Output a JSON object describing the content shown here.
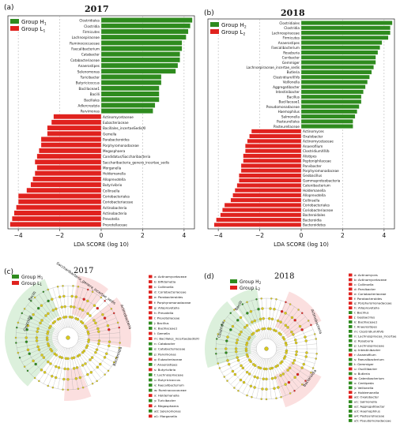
{
  "panels": {
    "a": {
      "letter": "(a)",
      "year": "2017"
    },
    "b": {
      "letter": "(b)",
      "year": "2018"
    },
    "c": {
      "letter": "(c)",
      "year": "2017"
    },
    "d": {
      "letter": "(d)",
      "year": "2018"
    }
  },
  "colors": {
    "green": "#2e8b1e",
    "red": "#e0221e",
    "green_light": "#bfe3bf",
    "red_light": "#f7c4c4",
    "node": "#d9c91c"
  },
  "chart_data": [
    {
      "type": "bar",
      "orientation": "horizontal",
      "title": "2017",
      "xlabel": "LDA SCORE (log 10)",
      "xlim": [
        -4.5,
        4.5
      ],
      "xticks": [
        -4,
        -2,
        0,
        2,
        4
      ],
      "legend": [
        {
          "name": "Group H",
          "sub": "1",
          "color": "#2e8b1e"
        },
        {
          "name": "Group L",
          "sub": "1",
          "color": "#e0221e"
        }
      ],
      "legend_position": "top-left",
      "categories": [
        "Clostridiales",
        "Clostridia",
        "Firmicutes",
        "Lachnospiraceae",
        "Ruminococcaceae",
        "Faecalibacterium",
        "Catabacter",
        "Catabacteriaceae",
        "Anaerostipes",
        "Selenomonas",
        "Turicibacter",
        "Butyricicoccus",
        "Bacillaceae1",
        "Bacilli",
        "Bacillales",
        "Adlercreutzia",
        "Parvimonas",
        "Actinomycetaceae",
        "Eubacteriaceae",
        "Bacillales_incertaeSedisXI",
        "Gemella",
        "Parabacteroides",
        "Porphyromonadaceae",
        "Megasphaera",
        "Candidatus/Saccharibacteria",
        "Saccharibacteria_genera_incertae_sedis",
        "Morganella",
        "Holdemanella",
        "Alloprevotella",
        "Butyrivibrio",
        "Collinsella",
        "Coriobacteriales",
        "Coriobacteriaceae",
        "Actinobacteria",
        "Actinobacteria",
        "Prevotella",
        "Prevotellaceae"
      ],
      "values": [
        4.4,
        4.3,
        4.2,
        4.1,
        3.9,
        3.9,
        3.8,
        3.8,
        3.7,
        3.6,
        2.9,
        2.9,
        2.8,
        2.8,
        2.8,
        2.6,
        2.5,
        -2.3,
        -2.4,
        -2.6,
        -2.6,
        -2.9,
        -2.9,
        -3.0,
        -3.1,
        -3.2,
        -3.1,
        -3.2,
        -3.3,
        -3.4,
        -3.6,
        -4.0,
        -4.0,
        -4.1,
        -4.2,
        -4.3,
        -4.4
      ]
    },
    {
      "type": "bar",
      "orientation": "horizontal",
      "title": "2018",
      "xlabel": "LDA SCORE (log 10)",
      "xlim": [
        -4.5,
        4.5
      ],
      "xticks": [
        -4,
        -2,
        0,
        2,
        4
      ],
      "legend": [
        {
          "name": "Group H",
          "sub": "2",
          "color": "#2e8b1e"
        },
        {
          "name": "Group L",
          "sub": "2",
          "color": "#e0221e"
        }
      ],
      "legend_position": "top-left",
      "categories": [
        "Clostridiales",
        "Clostridia",
        "Lachnospiraceae",
        "Firmicutes",
        "Anaerostipes",
        "Faecalibacterium",
        "Roseburia",
        "Cerrbacter",
        "Gemmiger",
        "Lachnospiraceae_incertae_sedis",
        "Butleria",
        "ClostridiumXIVb",
        "Veillonella",
        "Aggregatibacter",
        "Intestinibacter",
        "Bacillus",
        "Bacillaceae1",
        "Pseudomonadaceae",
        "Haemophilus",
        "Salmonella",
        "Pasteurellales",
        "Pasteurellaceae",
        "Actinomyces",
        "Oxalobacter",
        "Actinomycetaceae",
        "Anaerofilum",
        "ClostridiumXIVb",
        "Alistipes",
        "Peptoniphilaceae",
        "Parvibacter",
        "Porphyromonadaceae",
        "Geobacillus",
        "Gammaproteobacteria",
        "Catenibacterium",
        "Holdemanella",
        "Alloprevotella",
        "Collinsella",
        "Coriobacteriales",
        "Coriobacteriaceae",
        "Bacteroidales",
        "Bacteroidia",
        "Bacteroidetes"
      ],
      "values": [
        4.4,
        4.3,
        4.3,
        4.2,
        3.9,
        3.8,
        3.7,
        3.6,
        3.6,
        3.5,
        3.4,
        3.3,
        3.2,
        3.1,
        3.0,
        2.9,
        2.9,
        2.8,
        2.7,
        2.6,
        2.5,
        2.5,
        -2.4,
        -2.5,
        -2.6,
        -2.7,
        -2.7,
        -2.8,
        -2.8,
        -2.9,
        -2.9,
        -3.0,
        -3.0,
        -3.1,
        -3.2,
        -3.3,
        -3.4,
        -3.7,
        -3.8,
        -3.9,
        -4.1,
        -4.2
      ]
    }
  ],
  "cladogram_c": {
    "title": "2017",
    "legend": [
      {
        "name": "Group H",
        "sub": "1",
        "color": "#2e8b1e"
      },
      {
        "name": "Group L",
        "sub": "1",
        "color": "#e0221e"
      }
    ],
    "items": [
      {
        "text": "a: Actinomycetaceae",
        "color": "#e0221e"
      },
      {
        "text": "b: Bifidometia",
        "color": "#e0221e"
      },
      {
        "text": "c: Collinsella",
        "color": "#e0221e"
      },
      {
        "text": "d: Coriobacteriaceae",
        "color": "#e0221e"
      },
      {
        "text": "e: Parabacteroides",
        "color": "#e0221e"
      },
      {
        "text": "f: Porphyromonadaceae",
        "color": "#e0221e"
      },
      {
        "text": "g: Alloprevotella",
        "color": "#e0221e"
      },
      {
        "text": "h: Prevotella",
        "color": "#e0221e"
      },
      {
        "text": "i: Prevotellaceae",
        "color": "#e0221e"
      },
      {
        "text": "j: Bacillus",
        "color": "#2e8b1e"
      },
      {
        "text": "k: Bacillaceae1",
        "color": "#2e8b1e"
      },
      {
        "text": "l: Gemella",
        "color": "#e0221e"
      },
      {
        "text": "m: Bacillales_incertaeSedisXI",
        "color": "#e0221e"
      },
      {
        "text": "n: Catabacter",
        "color": "#2e8b1e"
      },
      {
        "text": "o: Catabacteriaceae",
        "color": "#2e8b1e"
      },
      {
        "text": "p: Parvimonas",
        "color": "#2e8b1e"
      },
      {
        "text": "q: Eubacteriaceae",
        "color": "#e0221e"
      },
      {
        "text": "r: Anaerostipes",
        "color": "#2e8b1e"
      },
      {
        "text": "s: Butyrivibrio",
        "color": "#e0221e"
      },
      {
        "text": "t: Lachnospiraceae",
        "color": "#2e8b1e"
      },
      {
        "text": "u: Butyricicoccus",
        "color": "#2e8b1e"
      },
      {
        "text": "v: Faecalibacterium",
        "color": "#2e8b1e"
      },
      {
        "text": "w: Ruminococcaceae",
        "color": "#2e8b1e"
      },
      {
        "text": "x: Holdemanella",
        "color": "#e0221e"
      },
      {
        "text": "y: Turicibacter",
        "color": "#2e8b1e"
      },
      {
        "text": "z: Megasphaera",
        "color": "#e0221e"
      },
      {
        "text": "a0: Selenomonas",
        "color": "#2e8b1e"
      },
      {
        "text": "a1: Morganella",
        "color": "#e0221e"
      }
    ],
    "sector_labels": [
      "Bacilli",
      "Clostridia",
      "Saccharibacteria_genera_incertae_sedis",
      "Actinobacteria",
      "Bacteroidia"
    ]
  },
  "cladogram_d": {
    "title": "2018",
    "legend": [
      {
        "name": "Group H",
        "sub": "2",
        "color": "#2e8b1e"
      },
      {
        "name": "Group L",
        "sub": "2",
        "color": "#e0221e"
      }
    ],
    "items": [
      {
        "text": "a: Actinomyces",
        "color": "#e0221e"
      },
      {
        "text": "b: Actinomycetaceae",
        "color": "#e0221e"
      },
      {
        "text": "c: Collinsella",
        "color": "#e0221e"
      },
      {
        "text": "d: Parvibacter",
        "color": "#e0221e"
      },
      {
        "text": "e: Coriobacteriaceae",
        "color": "#e0221e"
      },
      {
        "text": "f: Parabacteroides",
        "color": "#e0221e"
      },
      {
        "text": "g: Porphyromonadaceae",
        "color": "#e0221e"
      },
      {
        "text": "h: Alloprevotella",
        "color": "#e0221e"
      },
      {
        "text": "i: Bacillus",
        "color": "#2e8b1e"
      },
      {
        "text": "j: Geobacillus",
        "color": "#e0221e"
      },
      {
        "text": "k: Bacillaceae1",
        "color": "#2e8b1e"
      },
      {
        "text": "l: Anaerostipes",
        "color": "#2e8b1e"
      },
      {
        "text": "m: ClostridiumXIVb",
        "color": "#2e8b1e"
      },
      {
        "text": "n: Lachnospiracea_incertae",
        "color": "#2e8b1e"
      },
      {
        "text": "o: Roseburia",
        "color": "#2e8b1e"
      },
      {
        "text": "p: Lachnospiraceae",
        "color": "#2e8b1e"
      },
      {
        "text": "q: Intestinibacter",
        "color": "#2e8b1e"
      },
      {
        "text": "r: Anaerofilum",
        "color": "#e0221e"
      },
      {
        "text": "s: Faecalibacterium",
        "color": "#2e8b1e"
      },
      {
        "text": "t: Gemmiger",
        "color": "#2e8b1e"
      },
      {
        "text": "u: Oscillibacter",
        "color": "#e0221e"
      },
      {
        "text": "v: Butleria",
        "color": "#2e8b1e"
      },
      {
        "text": "w: Catenibacterium",
        "color": "#e0221e"
      },
      {
        "text": "x: Centipeda",
        "color": "#2e8b1e"
      },
      {
        "text": "y: Veillonella",
        "color": "#2e8b1e"
      },
      {
        "text": "z: Holdemanella",
        "color": "#e0221e"
      },
      {
        "text": "a0: Oxalobacter",
        "color": "#e0221e"
      },
      {
        "text": "a1: Salmonella",
        "color": "#2e8b1e"
      },
      {
        "text": "a2: Aggregatibacter",
        "color": "#2e8b1e"
      },
      {
        "text": "a3: Haemophilus",
        "color": "#2e8b1e"
      },
      {
        "text": "a4: Pasteurellaceae",
        "color": "#2e8b1e"
      },
      {
        "text": "a5: Pseudomonadaceae",
        "color": "#2e8b1e"
      }
    ],
    "sector_labels": [
      "Clostridia",
      "Bacilli",
      "Actinobacteria",
      "Bacteroidia"
    ]
  }
}
